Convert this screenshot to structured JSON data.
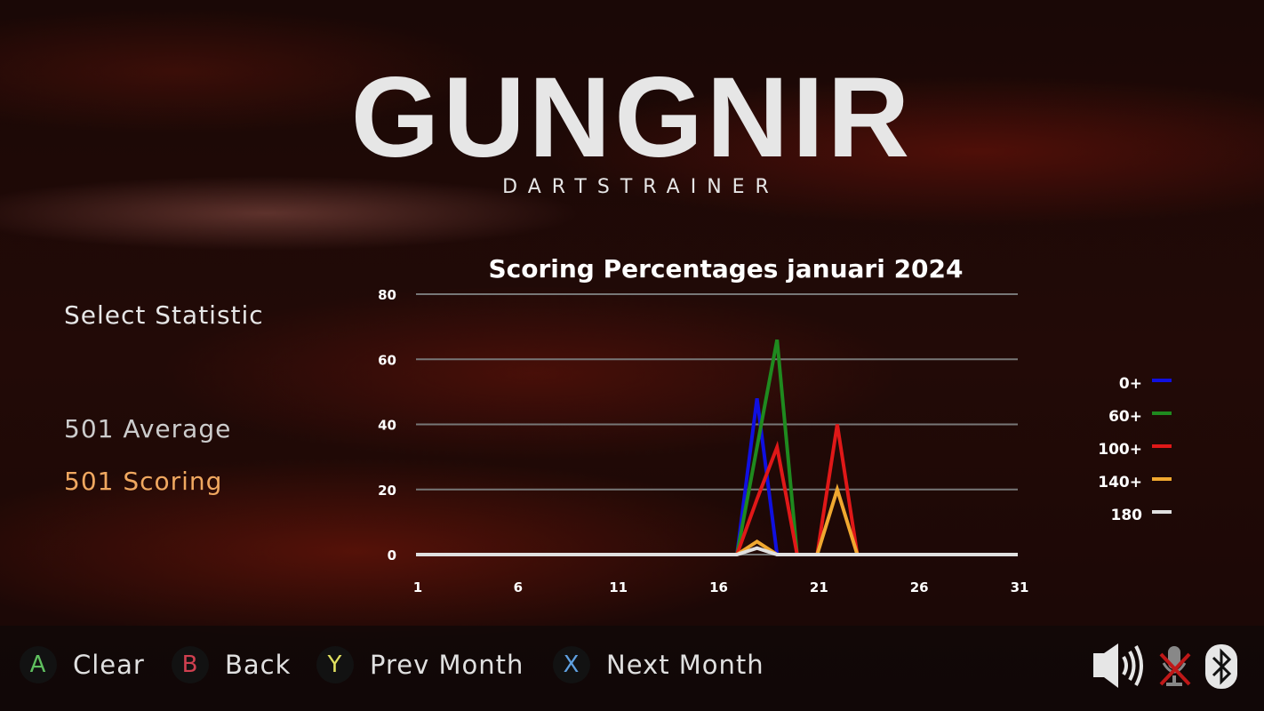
{
  "logo": {
    "title": "GUNGNIR",
    "subtitle": "DARTSTRAINER"
  },
  "menu": {
    "title": "Select Statistic",
    "items": [
      {
        "label": "501 Average",
        "selected": false
      },
      {
        "label": "501 Scoring",
        "selected": true
      }
    ],
    "selected_color": "#f0a860"
  },
  "chart_data": {
    "type": "line",
    "title": "Scoring Percentages januari 2024",
    "xlabel": "",
    "ylabel": "",
    "xlim": [
      1,
      31
    ],
    "ylim": [
      0,
      80
    ],
    "xticks": [
      1,
      6,
      11,
      16,
      21,
      26,
      31
    ],
    "yticks": [
      0,
      20,
      40,
      60,
      80
    ],
    "grid": true,
    "legend": "right",
    "series": [
      {
        "name": "0+",
        "color": "#1010e0",
        "points": [
          [
            17,
            0
          ],
          [
            18,
            48
          ],
          [
            19,
            0
          ]
        ]
      },
      {
        "name": "60+",
        "color": "#1f8a1f",
        "points": [
          [
            17,
            0
          ],
          [
            18,
            33
          ],
          [
            19,
            66
          ],
          [
            20,
            0
          ]
        ]
      },
      {
        "name": "100+",
        "color": "#e01818",
        "points": [
          [
            17,
            0
          ],
          [
            18,
            17
          ],
          [
            19,
            33
          ],
          [
            20,
            0
          ],
          [
            21,
            0
          ],
          [
            22,
            40
          ],
          [
            23,
            0
          ]
        ]
      },
      {
        "name": "140+",
        "color": "#f0a830",
        "points": [
          [
            17,
            0
          ],
          [
            18,
            4
          ],
          [
            19,
            0
          ],
          [
            21,
            0
          ],
          [
            22,
            20
          ],
          [
            23,
            0
          ]
        ]
      },
      {
        "name": "180",
        "color": "#e0e0e0",
        "points": [
          [
            1,
            0
          ],
          [
            17,
            0
          ],
          [
            18,
            2
          ],
          [
            19,
            0
          ],
          [
            31,
            0
          ]
        ]
      }
    ]
  },
  "footer": {
    "buttons": [
      {
        "key": "A",
        "label": "Clear",
        "color": "#5fbf5f"
      },
      {
        "key": "B",
        "label": "Back",
        "color": "#d04050"
      },
      {
        "key": "Y",
        "label": "Prev Month",
        "color": "#e0e060"
      },
      {
        "key": "X",
        "label": "Next Month",
        "color": "#5fa0e0"
      }
    ],
    "status_icons": [
      "speaker-icon",
      "microphone-muted-icon",
      "bluetooth-icon"
    ]
  }
}
